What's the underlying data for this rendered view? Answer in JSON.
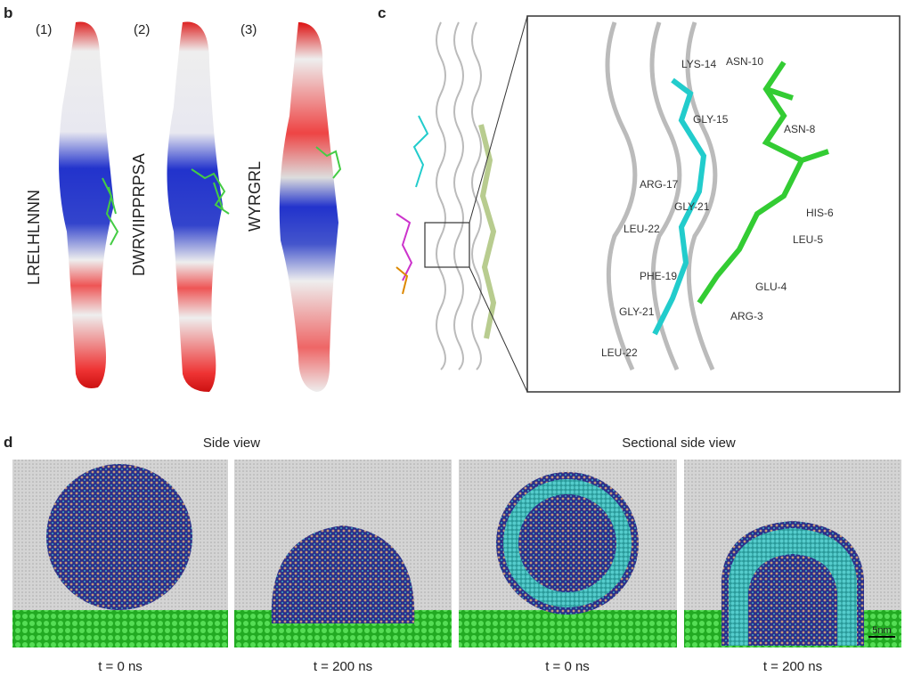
{
  "panel_b": {
    "label": "b",
    "items": [
      {
        "number": "(1)",
        "sequence": "LRELHLNNN"
      },
      {
        "number": "(2)",
        "sequence": "DWRVIIPPRPSA"
      },
      {
        "number": "(3)",
        "sequence": "WYRGRL"
      }
    ]
  },
  "panel_c": {
    "label": "c",
    "residues": [
      "LYS-14",
      "ASN-10",
      "GLY-15",
      "ASN-8",
      "ARG-17",
      "GLY-21",
      "HIS-6",
      "LEU-22",
      "LEU-5",
      "PHE-19",
      "GLU-4",
      "GLY-21",
      "ARG-3",
      "LEU-22"
    ]
  },
  "panel_d": {
    "label": "d",
    "headers": [
      "Side view",
      "Sectional side view"
    ],
    "times": [
      "t = 0 ns",
      "t = 200 ns",
      "t = 0 ns",
      "t = 200 ns"
    ],
    "scale_bar": "5nm"
  }
}
